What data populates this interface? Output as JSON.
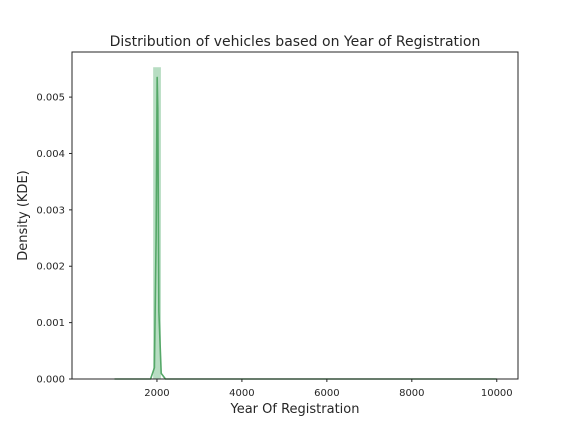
{
  "chart_data": {
    "type": "histogram-kde",
    "title": "Distribution of vehicles based on Year of Registration",
    "xlabel": "Year Of Registration",
    "ylabel": "Density (KDE)",
    "xlim": [
      0,
      10500
    ],
    "ylim": [
      0,
      0.0058
    ],
    "x_ticks": [
      2000,
      4000,
      6000,
      8000,
      10000
    ],
    "y_ticks": [
      0.0,
      0.001,
      0.002,
      0.003,
      0.004,
      0.005
    ],
    "y_tick_labels": [
      "0.000",
      "0.001",
      "0.002",
      "0.003",
      "0.004",
      "0.005"
    ],
    "grid": false,
    "histogram": {
      "bins": [
        {
          "x0": 1911,
          "x1": 2093,
          "density": 0.00553
        }
      ],
      "color": "#9fd1ae"
    },
    "kde": {
      "x": [
        1000,
        1850,
        1940,
        1980,
        2005,
        2020,
        2045,
        2100,
        2200,
        3000,
        6000,
        10000
      ],
      "y": [
        0.0,
        0.0,
        0.0002,
        0.0025,
        0.00535,
        0.0048,
        0.0012,
        0.0001,
        0.0,
        0.0,
        0.0,
        0.0
      ],
      "color": "#55a868"
    }
  }
}
